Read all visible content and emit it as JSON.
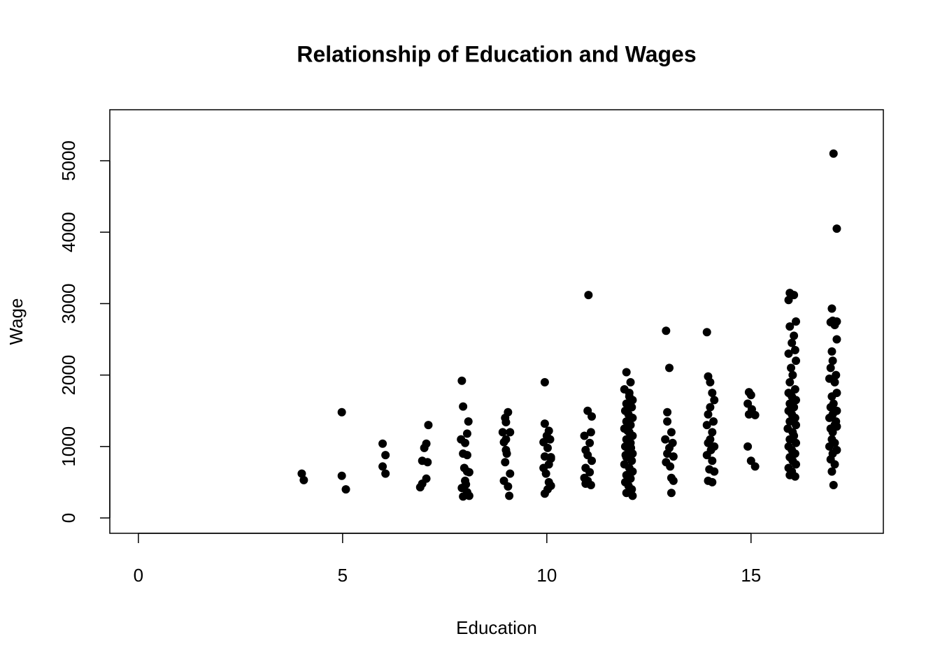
{
  "chart_data": {
    "type": "scatter",
    "title": "Relationship of Education and Wages",
    "x_label": "Education",
    "y_label": "Wage",
    "color": "#000000",
    "xlim": [
      -0.7,
      18.24
    ],
    "ylim": [
      -215,
      5714
    ],
    "xticks": [
      0,
      5,
      10,
      15
    ],
    "yticks": [
      0,
      1000,
      2000,
      3000,
      4000,
      5000
    ],
    "grid": false,
    "x": [
      4.0,
      4.05,
      4.98,
      4.98,
      5.08,
      5.98,
      6.05,
      5.98,
      6.05,
      7.1,
      7.05,
      7.0,
      6.95,
      7.08,
      7.05,
      6.95,
      6.9,
      7.92,
      7.95,
      8.08,
      8.05,
      7.9,
      8.0,
      7.95,
      8.05,
      7.98,
      8.05,
      8.1,
      7.92,
      8.02,
      8.05,
      7.95,
      8.1,
      8.0,
      9.05,
      8.98,
      9.1,
      8.92,
      9.0,
      8.95,
      9.02,
      8.98,
      9.1,
      8.95,
      9.05,
      9.08,
      9.0,
      9.0,
      9.95,
      9.95,
      10.05,
      10.0,
      9.92,
      10.08,
      10.02,
      9.95,
      10.1,
      10.05,
      9.92,
      9.98,
      10.05,
      10.1,
      9.95,
      10.02,
      10.1,
      11.02,
      11.0,
      11.1,
      11.08,
      10.92,
      11.05,
      10.95,
      11.0,
      11.1,
      10.95,
      11.05,
      10.92,
      11.0,
      11.08,
      10.95,
      11.95,
      12.05,
      11.9,
      12.02,
      12.1,
      11.95,
      12.08,
      11.92,
      12.0,
      12.1,
      11.95,
      12.05,
      11.9,
      12.02,
      12.1,
      11.95,
      12.05,
      11.92,
      12.0,
      12.1,
      11.95,
      12.08,
      11.9,
      12.02,
      12.1,
      11.95,
      12.05,
      11.92,
      12.0,
      12.08,
      11.95,
      12.1,
      12.02,
      11.98,
      12.06,
      11.93,
      12.04,
      12.92,
      13.0,
      12.95,
      13.05,
      12.9,
      13.08,
      13.0,
      12.95,
      13.1,
      12.92,
      13.02,
      13.05,
      13.1,
      13.05,
      12.95,
      13.92,
      13.95,
      14.0,
      14.05,
      14.1,
      14.0,
      13.95,
      14.08,
      13.92,
      14.05,
      14.0,
      13.95,
      14.1,
      14.02,
      13.92,
      14.05,
      13.98,
      14.1,
      13.95,
      14.05,
      14.95,
      15.0,
      14.92,
      15.02,
      14.95,
      15.1,
      14.92,
      15.0,
      15.1,
      15.95,
      16.05,
      15.92,
      16.1,
      15.95,
      16.05,
      16.0,
      16.08,
      15.92,
      16.1,
      15.98,
      16.02,
      15.95,
      16.08,
      15.92,
      16.0,
      16.1,
      15.95,
      16.05,
      15.92,
      16.0,
      16.08,
      15.95,
      16.1,
      15.9,
      16.02,
      16.05,
      15.95,
      16.1,
      15.92,
      16.0,
      16.08,
      15.95,
      16.02,
      16.1,
      15.92,
      16.0,
      15.95,
      16.08,
      17.02,
      17.1,
      16.98,
      17.0,
      17.1,
      16.95,
      17.05,
      17.1,
      16.98,
      17.0,
      16.95,
      17.08,
      16.92,
      17.05,
      17.1,
      16.98,
      17.02,
      16.95,
      17.1,
      17.0,
      16.92,
      17.08,
      17.05,
      16.95,
      17.1,
      17.0,
      16.98,
      17.05,
      16.92,
      17.1,
      17.0,
      16.95,
      17.05,
      16.98,
      17.02
    ],
    "values": [
      620,
      530,
      1480,
      590,
      400,
      1040,
      880,
      720,
      620,
      1300,
      1040,
      980,
      800,
      780,
      550,
      480,
      430,
      1920,
      1560,
      1350,
      1180,
      1100,
      1050,
      900,
      880,
      700,
      650,
      640,
      420,
      470,
      360,
      300,
      310,
      520,
      1480,
      1400,
      1200,
      1200,
      1340,
      1060,
      900,
      780,
      620,
      520,
      440,
      310,
      1100,
      950,
      1900,
      1320,
      1220,
      1150,
      1060,
      1100,
      980,
      860,
      830,
      750,
      700,
      620,
      500,
      450,
      340,
      400,
      850,
      3120,
      1500,
      1420,
      1200,
      1150,
      1050,
      950,
      880,
      800,
      700,
      640,
      560,
      520,
      460,
      480,
      2040,
      1900,
      1800,
      1750,
      1650,
      1600,
      1550,
      1500,
      1450,
      1400,
      1350,
      1300,
      1250,
      1200,
      1150,
      1100,
      1050,
      1000,
      950,
      900,
      850,
      800,
      750,
      700,
      650,
      600,
      550,
      500,
      450,
      400,
      350,
      310,
      1700,
      1220,
      980,
      880,
      620,
      2620,
      2100,
      1480,
      1200,
      1100,
      1050,
      980,
      900,
      860,
      780,
      720,
      560,
      520,
      350,
      1350,
      2600,
      1980,
      1900,
      1750,
      1650,
      1550,
      1450,
      1350,
      1300,
      1200,
      1100,
      1050,
      1000,
      950,
      880,
      800,
      680,
      650,
      520,
      500,
      1760,
      1720,
      1600,
      1520,
      1450,
      1440,
      1000,
      800,
      720,
      3150,
      3120,
      3050,
      2750,
      2680,
      2550,
      2450,
      2350,
      2300,
      2200,
      2100,
      2000,
      1900,
      1800,
      1750,
      1700,
      1650,
      1600,
      1550,
      1500,
      1450,
      1400,
      1350,
      1300,
      1250,
      1200,
      1150,
      1100,
      1050,
      1000,
      950,
      900,
      850,
      800,
      750,
      700,
      650,
      600,
      580,
      5100,
      4050,
      2930,
      2760,
      2750,
      2740,
      2700,
      2500,
      2330,
      2200,
      2100,
      2000,
      1950,
      1900,
      1750,
      1700,
      1600,
      1550,
      1500,
      1450,
      1400,
      1350,
      1300,
      1250,
      1280,
      1200,
      1100,
      1050,
      1000,
      950,
      900,
      820,
      750,
      650,
      460
    ]
  }
}
